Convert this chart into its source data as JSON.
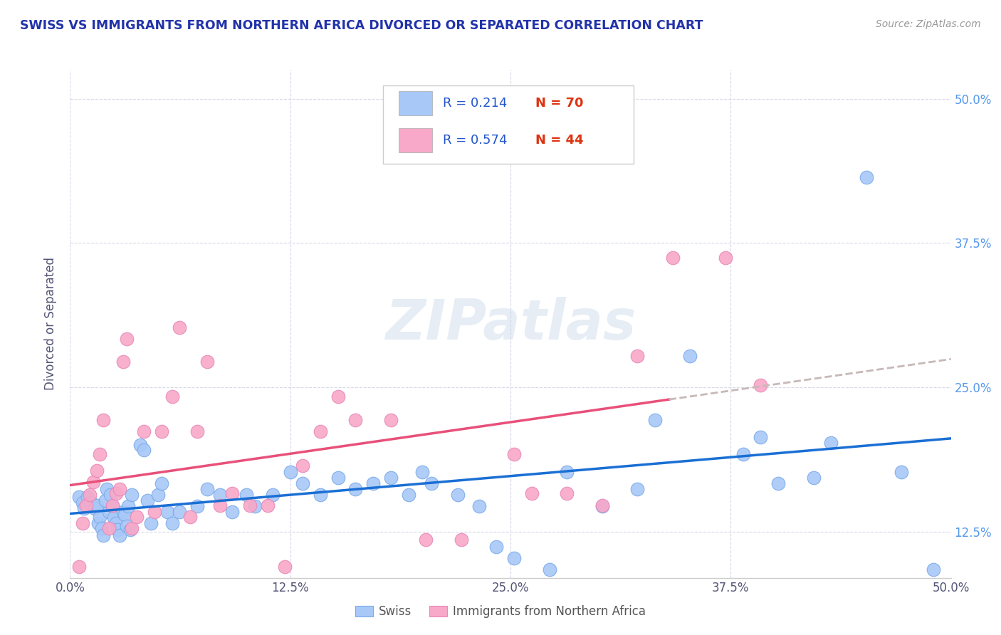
{
  "title": "SWISS VS IMMIGRANTS FROM NORTHERN AFRICA DIVORCED OR SEPARATED CORRELATION CHART",
  "source": "Source: ZipAtlas.com",
  "ylabel": "Divorced or Separated",
  "watermark": "ZIPatlas",
  "legend_r_swiss": "R = 0.214",
  "legend_n_swiss": "N = 70",
  "legend_r_africa": "R = 0.574",
  "legend_n_africa": "N = 44",
  "swiss_color": "#a8c8f8",
  "africa_color": "#f8a8c8",
  "swiss_edge_color": "#7aaae8",
  "africa_edge_color": "#e888b8",
  "trendline_swiss_color": "#1a6fd4",
  "trendline_africa_color": "#e8507a",
  "trendline_dashed_color": "#c8b8b8",
  "xmin": 0.0,
  "xmax": 0.5,
  "ymin": 0.085,
  "ymax": 0.525,
  "xtick_vals": [
    0.0,
    0.125,
    0.25,
    0.375,
    0.5
  ],
  "xtick_labels": [
    "0.0%",
    "12.5%",
    "25.0%",
    "37.5%",
    "50.0%"
  ],
  "ytick_vals": [
    0.125,
    0.25,
    0.375,
    0.5
  ],
  "ytick_labels": [
    "12.5%",
    "25.0%",
    "37.5%",
    "50.0%"
  ],
  "swiss_x": [
    0.005,
    0.007,
    0.008,
    0.01,
    0.012,
    0.014,
    0.015,
    0.016,
    0.017,
    0.018,
    0.019,
    0.02,
    0.021,
    0.022,
    0.023,
    0.024,
    0.025,
    0.026,
    0.027,
    0.028,
    0.03,
    0.031,
    0.032,
    0.033,
    0.034,
    0.035,
    0.04,
    0.042,
    0.044,
    0.046,
    0.05,
    0.052,
    0.055,
    0.058,
    0.062,
    0.072,
    0.078,
    0.085,
    0.092,
    0.1,
    0.105,
    0.115,
    0.125,
    0.132,
    0.142,
    0.152,
    0.162,
    0.172,
    0.182,
    0.192,
    0.2,
    0.205,
    0.22,
    0.232,
    0.242,
    0.252,
    0.272,
    0.282,
    0.302,
    0.322,
    0.332,
    0.352,
    0.382,
    0.392,
    0.402,
    0.422,
    0.432,
    0.452,
    0.472,
    0.49
  ],
  "swiss_y": [
    0.155,
    0.15,
    0.145,
    0.155,
    0.15,
    0.145,
    0.148,
    0.132,
    0.138,
    0.128,
    0.122,
    0.152,
    0.162,
    0.142,
    0.157,
    0.147,
    0.137,
    0.132,
    0.127,
    0.122,
    0.142,
    0.14,
    0.13,
    0.147,
    0.127,
    0.157,
    0.2,
    0.196,
    0.152,
    0.132,
    0.157,
    0.167,
    0.142,
    0.132,
    0.142,
    0.147,
    0.162,
    0.157,
    0.142,
    0.157,
    0.147,
    0.157,
    0.177,
    0.167,
    0.157,
    0.172,
    0.162,
    0.167,
    0.172,
    0.157,
    0.177,
    0.167,
    0.157,
    0.147,
    0.112,
    0.102,
    0.092,
    0.177,
    0.147,
    0.162,
    0.222,
    0.277,
    0.192,
    0.207,
    0.167,
    0.172,
    0.202,
    0.432,
    0.177,
    0.092
  ],
  "africa_x": [
    0.005,
    0.007,
    0.009,
    0.011,
    0.013,
    0.015,
    0.017,
    0.019,
    0.022,
    0.024,
    0.026,
    0.028,
    0.03,
    0.032,
    0.035,
    0.038,
    0.042,
    0.048,
    0.052,
    0.058,
    0.062,
    0.068,
    0.072,
    0.078,
    0.085,
    0.092,
    0.102,
    0.112,
    0.122,
    0.132,
    0.142,
    0.152,
    0.162,
    0.182,
    0.202,
    0.222,
    0.252,
    0.262,
    0.282,
    0.302,
    0.322,
    0.342,
    0.372,
    0.392
  ],
  "africa_y": [
    0.095,
    0.132,
    0.148,
    0.157,
    0.168,
    0.178,
    0.192,
    0.222,
    0.128,
    0.148,
    0.158,
    0.162,
    0.272,
    0.292,
    0.128,
    0.138,
    0.212,
    0.142,
    0.212,
    0.242,
    0.302,
    0.138,
    0.212,
    0.272,
    0.148,
    0.158,
    0.148,
    0.148,
    0.095,
    0.182,
    0.212,
    0.242,
    0.222,
    0.222,
    0.118,
    0.118,
    0.192,
    0.158,
    0.158,
    0.148,
    0.277,
    0.362,
    0.362,
    0.252
  ]
}
